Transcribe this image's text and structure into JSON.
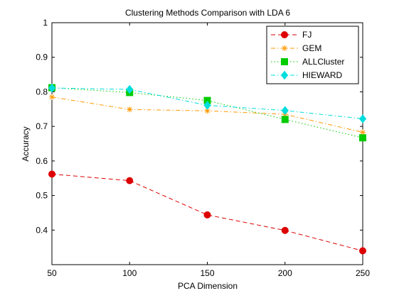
{
  "chart_data": {
    "type": "line",
    "title": "Clustering Methods Comparison with LDA 6",
    "xlabel": "PCA Dimension",
    "ylabel": "Accuracy",
    "x": [
      50,
      100,
      150,
      200,
      250
    ],
    "xlim": [
      50,
      250
    ],
    "ylim": [
      0.3,
      1.0
    ],
    "xticks": [
      "50",
      "100",
      "150",
      "200",
      "250"
    ],
    "yticks": [
      "0.4",
      "0.5",
      "0.6",
      "0.7",
      "0.8",
      "0.9",
      "1"
    ],
    "ytick_values": [
      0.4,
      0.5,
      0.6,
      0.7,
      0.8,
      0.9,
      1.0
    ],
    "grid": false,
    "legend_position": "top-right",
    "series": [
      {
        "name": "FJ",
        "values": [
          0.562,
          0.543,
          0.444,
          0.399,
          0.34
        ],
        "color": "#dd0000",
        "line_style": "dashed",
        "marker": "circle"
      },
      {
        "name": "GEM",
        "values": [
          0.785,
          0.749,
          0.745,
          0.735,
          0.683
        ],
        "color": "#ff9900",
        "line_style": "dashdot",
        "marker": "asterisk"
      },
      {
        "name": "ALLCluster",
        "values": [
          0.812,
          0.798,
          0.775,
          0.72,
          0.667
        ],
        "color": "#00cc00",
        "line_style": "dotted",
        "marker": "square"
      },
      {
        "name": "HIEWARD",
        "values": [
          0.811,
          0.807,
          0.761,
          0.746,
          0.722
        ],
        "color": "#00dddd",
        "line_style": "dashdot",
        "marker": "diamond"
      }
    ]
  }
}
